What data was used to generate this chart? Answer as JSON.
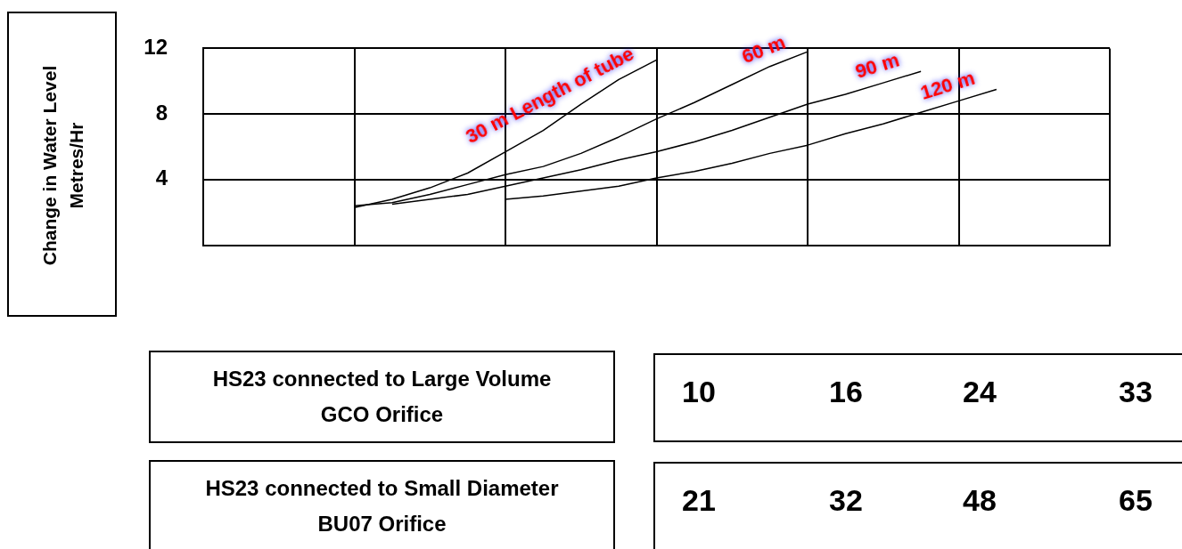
{
  "chart_data": {
    "type": "line",
    "ylabel": "Change in Water Level Metres/Hr",
    "categories": [
      null,
      null,
      null,
      null,
      null,
      null,
      null,
      null,
      null,
      null,
      null,
      null,
      null,
      null,
      null,
      null,
      null,
      null,
      null,
      null,
      null,
      null,
      null,
      null,
      null
    ],
    "series": [
      {
        "name": "30 m Length of tube",
        "color": "#000000",
        "values": [
          null,
          null,
          null,
          null,
          2.3,
          2.8,
          3.5,
          4.4,
          5.7,
          7.0,
          8.6,
          10.1,
          11.3,
          null,
          null,
          null,
          null,
          null,
          null,
          null,
          null,
          null,
          null,
          null,
          null
        ]
      },
      {
        "name": "60 m",
        "color": "#000000",
        "values": [
          null,
          null,
          null,
          null,
          2.4,
          2.6,
          3.1,
          3.7,
          4.3,
          4.8,
          5.6,
          6.6,
          7.7,
          8.7,
          9.8,
          10.9,
          11.8,
          null,
          null,
          null,
          null,
          null,
          null,
          null,
          null
        ]
      },
      {
        "name": "90 m",
        "color": "#000000",
        "values": [
          null,
          null,
          null,
          null,
          null,
          2.5,
          2.8,
          3.1,
          3.6,
          4.1,
          4.6,
          5.2,
          5.7,
          6.3,
          7.0,
          7.8,
          8.6,
          9.2,
          9.9,
          10.6,
          null,
          null,
          null,
          null,
          null
        ]
      },
      {
        "name": "120 m",
        "color": "#000000",
        "values": [
          null,
          null,
          null,
          null,
          null,
          null,
          null,
          null,
          2.8,
          3.0,
          3.3,
          3.6,
          4.1,
          4.5,
          5.0,
          5.6,
          6.1,
          6.8,
          7.4,
          8.1,
          8.8,
          9.5,
          null,
          null,
          null
        ]
      }
    ],
    "ylim": [
      0,
      12
    ],
    "yticks": [
      4,
      8,
      12
    ],
    "grid": true,
    "tick_labels": "y",
    "marker": "none",
    "line_style": "solid",
    "annotations": [
      "HS23 connected to Large Volume GCO Orifice",
      "10",
      "16",
      "24",
      "33",
      "HS23 connected to Small Diameter BU07 Orifice",
      "21",
      "32",
      "48",
      "65"
    ]
  }
}
